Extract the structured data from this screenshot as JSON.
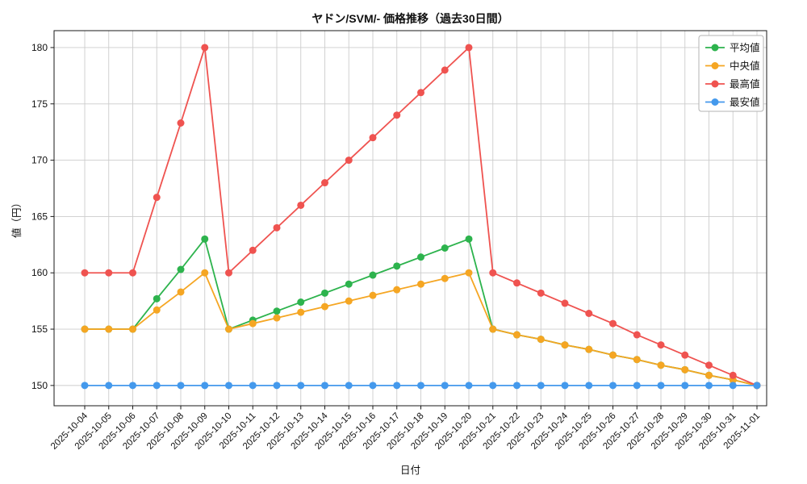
{
  "page": {
    "background": "#ffffff"
  },
  "chart_data": {
    "type": "line",
    "title": "ヤドン/SVM/- 価格推移（過去30日間）",
    "xlabel": "日付",
    "ylabel": "値（円）",
    "x": [
      "2025-10-04",
      "2025-10-05",
      "2025-10-06",
      "2025-10-07",
      "2025-10-08",
      "2025-10-09",
      "2025-10-10",
      "2025-10-11",
      "2025-10-12",
      "2025-10-13",
      "2025-10-14",
      "2025-10-15",
      "2025-10-16",
      "2025-10-17",
      "2025-10-18",
      "2025-10-19",
      "2025-10-20",
      "2025-10-21",
      "2025-10-22",
      "2025-10-23",
      "2025-10-24",
      "2025-10-25",
      "2025-10-26",
      "2025-10-27",
      "2025-10-28",
      "2025-10-29",
      "2025-10-30",
      "2025-10-31",
      "2025-11-01"
    ],
    "yticks": [
      150,
      155,
      160,
      165,
      170,
      175,
      180
    ],
    "ylim": [
      148.2,
      181.5
    ],
    "grid": true,
    "grid_color": "#cccccc",
    "axis_color": "#1a1a1a",
    "legend_position": "upper right",
    "series": [
      {
        "name": "平均値",
        "color": "#2db34d",
        "values": [
          155,
          155,
          155,
          157.7,
          160.3,
          163,
          155,
          155.8,
          156.6,
          157.4,
          158.2,
          159,
          159.8,
          160.6,
          161.4,
          162.2,
          163,
          155,
          154.5,
          154.1,
          153.6,
          153.2,
          152.7,
          152.3,
          151.8,
          151.4,
          150.9,
          150.5,
          150
        ]
      },
      {
        "name": "中央値",
        "color": "#f5a623",
        "values": [
          155,
          155,
          155,
          156.7,
          158.3,
          160,
          155,
          155.5,
          156,
          156.5,
          157,
          157.5,
          158,
          158.5,
          159,
          159.5,
          160,
          155,
          154.5,
          154.1,
          153.6,
          153.2,
          152.7,
          152.3,
          151.8,
          151.4,
          150.9,
          150.5,
          150
        ]
      },
      {
        "name": "最高値",
        "color": "#ef5350",
        "values": [
          160,
          160,
          160,
          166.7,
          173.3,
          180,
          160,
          162,
          164,
          166,
          168,
          170,
          172,
          174,
          176,
          178,
          180,
          160,
          159.1,
          158.2,
          157.3,
          156.4,
          155.5,
          154.5,
          153.6,
          152.7,
          151.8,
          150.9,
          150
        ]
      },
      {
        "name": "最安値",
        "color": "#4499ec",
        "values": [
          150,
          150,
          150,
          150,
          150,
          150,
          150,
          150,
          150,
          150,
          150,
          150,
          150,
          150,
          150,
          150,
          150,
          150,
          150,
          150,
          150,
          150,
          150,
          150,
          150,
          150,
          150,
          150,
          150
        ]
      }
    ]
  }
}
